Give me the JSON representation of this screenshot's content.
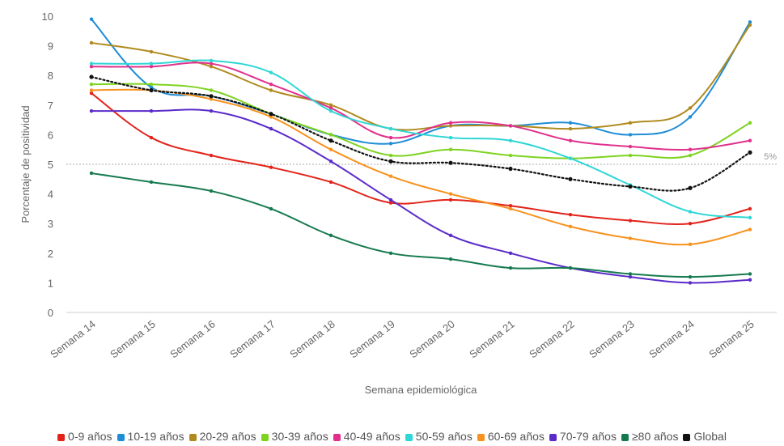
{
  "chart_data": {
    "type": "line",
    "xlabel": "Semana epidemiológica",
    "ylabel": "Porcentaje de positividad",
    "ylim": [
      0,
      10
    ],
    "yticks": [
      "0",
      "1",
      "2",
      "3",
      "4",
      "5",
      "6",
      "7",
      "8",
      "9",
      "10"
    ],
    "grid": false,
    "legend_position": "bottom",
    "categories": [
      "Semana 14",
      "Semana 15",
      "Semana 16",
      "Semana 17",
      "Semana 18",
      "Semana 19",
      "Semana 20",
      "Semana 21",
      "Semana 22",
      "Semana 23",
      "Semana 24",
      "Semana 25"
    ],
    "reference_line": {
      "value": 5,
      "label": "5%"
    },
    "series": [
      {
        "name": "0-9 años",
        "color": "#e2231a",
        "values": [
          7.4,
          5.9,
          5.3,
          4.9,
          4.4,
          3.7,
          3.8,
          3.6,
          3.3,
          3.1,
          3.0,
          3.5
        ]
      },
      {
        "name": "10-19 años",
        "color": "#1f8dd6",
        "values": [
          9.9,
          7.6,
          7.3,
          6.7,
          6.0,
          5.7,
          6.3,
          6.3,
          6.4,
          6.0,
          6.6,
          9.8
        ]
      },
      {
        "name": "20-29 años",
        "color": "#b08a1e",
        "values": [
          9.1,
          8.8,
          8.3,
          7.5,
          7.0,
          6.2,
          6.3,
          6.3,
          6.2,
          6.4,
          6.9,
          9.7
        ]
      },
      {
        "name": "30-39 años",
        "color": "#7ed321",
        "values": [
          7.7,
          7.7,
          7.5,
          6.7,
          6.0,
          5.3,
          5.5,
          5.3,
          5.2,
          5.3,
          5.3,
          6.4
        ]
      },
      {
        "name": "40-49 años",
        "color": "#e0308c",
        "values": [
          8.3,
          8.3,
          8.4,
          7.7,
          6.9,
          5.9,
          6.4,
          6.3,
          5.8,
          5.6,
          5.5,
          5.8
        ]
      },
      {
        "name": "50-59 años",
        "color": "#2fd6d6",
        "values": [
          8.4,
          8.4,
          8.5,
          8.1,
          6.8,
          6.2,
          5.9,
          5.8,
          5.2,
          4.3,
          3.4,
          3.2
        ]
      },
      {
        "name": "60-69 años",
        "color": "#f7921e",
        "values": [
          7.5,
          7.5,
          7.2,
          6.6,
          5.5,
          4.6,
          4.0,
          3.5,
          2.9,
          2.5,
          2.3,
          2.8
        ]
      },
      {
        "name": "70-79 años",
        "color": "#5b2bc9",
        "values": [
          6.8,
          6.8,
          6.8,
          6.2,
          5.1,
          3.8,
          2.6,
          2.0,
          1.5,
          1.2,
          1.0,
          1.1
        ]
      },
      {
        "name": "≥80 años",
        "color": "#167a4f",
        "values": [
          4.7,
          4.4,
          4.1,
          3.5,
          2.6,
          2.0,
          1.8,
          1.5,
          1.5,
          1.3,
          1.2,
          1.3
        ]
      },
      {
        "name": "Global",
        "color": "#111111",
        "dashed": true,
        "values": [
          7.95,
          7.5,
          7.3,
          6.7,
          5.8,
          5.1,
          5.05,
          4.85,
          4.5,
          4.25,
          4.2,
          5.4
        ]
      }
    ]
  }
}
